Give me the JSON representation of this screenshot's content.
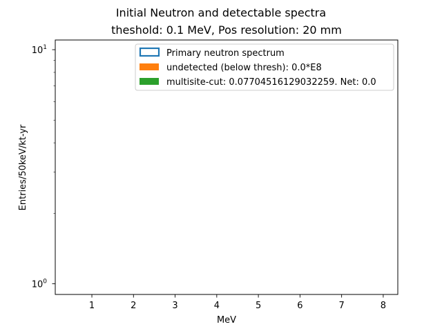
{
  "chart_data": {
    "type": "bar",
    "title_lines": [
      "Initial Neutron and detectable spectra",
      "theshold: 0.1 MeV, Pos resolution: 20 mm"
    ],
    "xlabel": "MeV",
    "ylabel": "Entries/50keV/kt-yr",
    "xlim": [
      0.12,
      8.35
    ],
    "ylim": [
      0.9,
      11
    ],
    "y_scale": "log",
    "grid": false,
    "legend_position": "top-right",
    "x_ticks": [
      1,
      2,
      3,
      4,
      5,
      6,
      7,
      8
    ],
    "x_tick_labels": [
      "1",
      "2",
      "3",
      "4",
      "5",
      "6",
      "7",
      "8"
    ],
    "y_major_ticks": [
      1,
      10
    ],
    "y_tick_labels": [
      {
        "base": "10",
        "exp": "0"
      },
      {
        "base": "10",
        "exp": "1"
      }
    ],
    "y_minor_ticks": [
      2,
      3,
      4,
      5,
      6,
      7,
      8,
      9
    ],
    "series": [
      {
        "name": "Primary neutron spectrum",
        "style": "step",
        "color": "#1f77b4",
        "values": []
      },
      {
        "name": "undetected (below thresh): 0.0*E8",
        "style": "filled",
        "color": "#ff7f0e",
        "values": []
      },
      {
        "name": "multisite-cut: 0.07704516129032259. Net: 0.0",
        "style": "filled",
        "color": "#2ca02c",
        "values": []
      }
    ]
  }
}
